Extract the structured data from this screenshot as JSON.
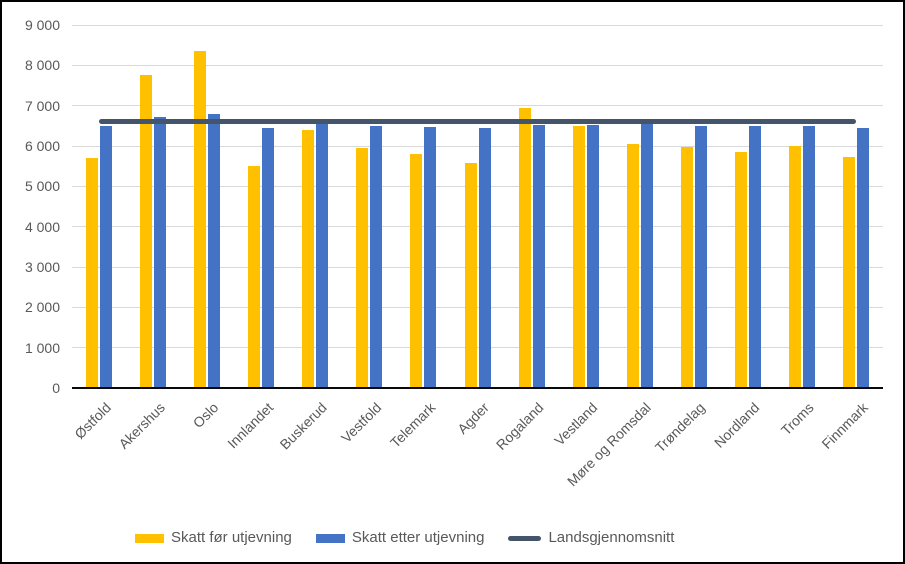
{
  "frame": {
    "background": "#FFFFFF",
    "border_color": "#000000",
    "gridline_color": "#D9D9D9",
    "axis_line_color": "#0A0A0A",
    "tick_label_color": "#595959"
  },
  "chart_data": {
    "type": "bar",
    "title": "",
    "xlabel": "",
    "ylabel": "",
    "ylim": [
      0,
      9000
    ],
    "y_tick_step": 1000,
    "y_tick_labels": [
      "0",
      "1 000",
      "2 000",
      "3 000",
      "4 000",
      "5 000",
      "6 000",
      "7 000",
      "8 000",
      "9 000"
    ],
    "grid": true,
    "legend_position": "bottom",
    "categories": [
      "Østfold",
      "Akershus",
      "Oslo",
      "Innlandet",
      "Buskerud",
      "Vestfold",
      "Telemark",
      "Agder",
      "Rogaland",
      "Vestland",
      "Møre og Romsdal",
      "Trøndelag",
      "Nordland",
      "Troms",
      "Finnmark"
    ],
    "series": [
      {
        "name": "Skatt før utjevning",
        "type": "bar",
        "color": "#FFC000",
        "values": [
          5700,
          7750,
          8350,
          5510,
          6400,
          5950,
          5810,
          5580,
          6930,
          6500,
          6060,
          5980,
          5860,
          6010,
          5730
        ]
      },
      {
        "name": "Skatt etter utjevning",
        "type": "bar",
        "color": "#4472C4",
        "values": [
          6490,
          6730,
          6790,
          6450,
          6560,
          6490,
          6470,
          6450,
          6520,
          6530,
          6540,
          6500,
          6490,
          6500,
          6440
        ]
      },
      {
        "name": "Landsgjennomsnitt",
        "type": "line",
        "color": "#44546A",
        "value": 6600
      }
    ]
  }
}
